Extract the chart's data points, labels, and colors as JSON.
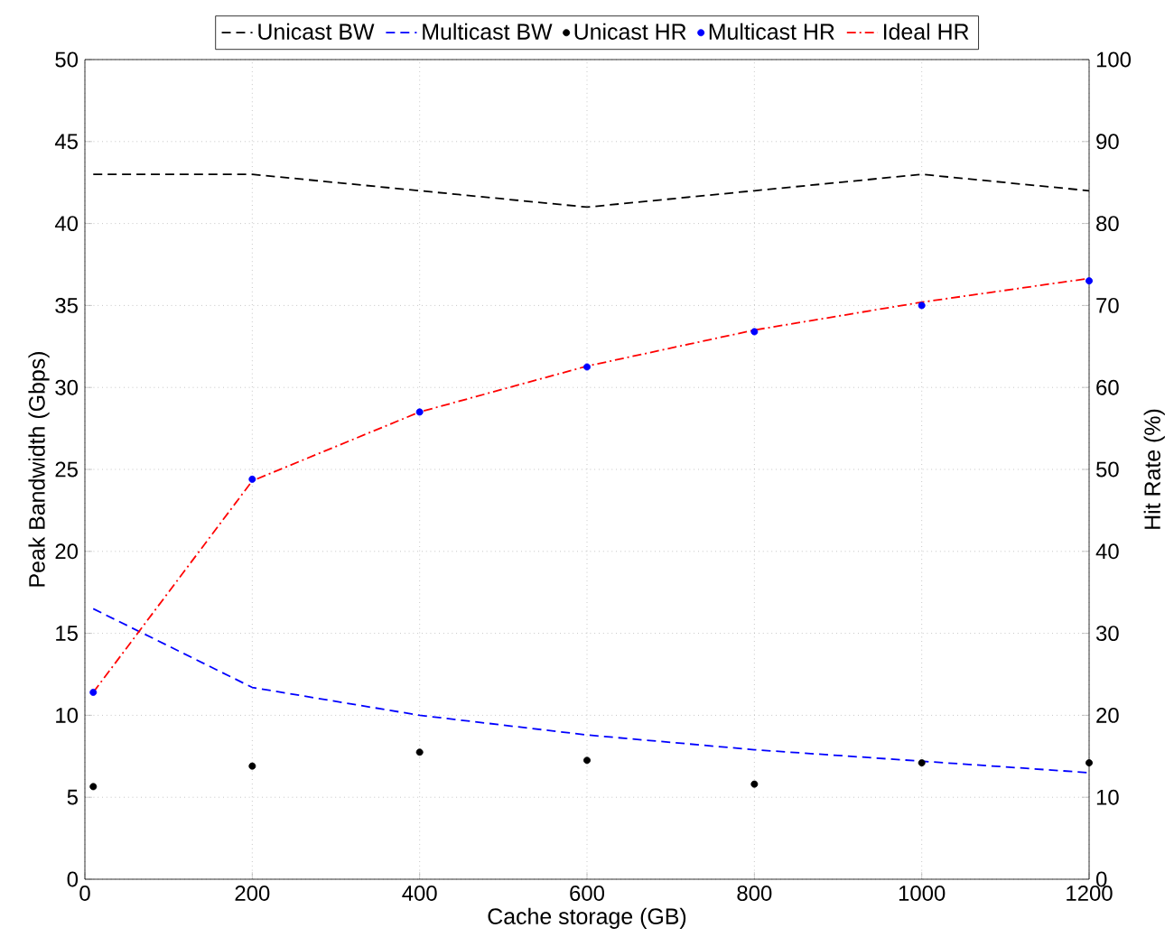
{
  "chart_data": {
    "type": "line",
    "xlabel": "Cache storage (GB)",
    "ylabel": "Peak Bandwidth (Gbps)",
    "y2label": "Hit Rate (%)",
    "xlim": [
      0,
      1200
    ],
    "xticks": [
      0,
      200,
      400,
      600,
      800,
      1000,
      1200
    ],
    "ylim": [
      0,
      50
    ],
    "yticks": [
      0,
      5,
      10,
      15,
      20,
      25,
      30,
      35,
      40,
      45,
      50
    ],
    "y2lim": [
      0,
      100
    ],
    "y2ticks": [
      0,
      10,
      20,
      30,
      40,
      50,
      60,
      70,
      80,
      90,
      100
    ],
    "grid": true,
    "legend": "top",
    "x": [
      10,
      200,
      400,
      600,
      800,
      1000,
      1200
    ],
    "series": [
      {
        "name": "Unicast BW",
        "color": "#000000",
        "line_style": "dashed",
        "values": [
          43,
          43,
          42,
          41,
          42,
          43,
          42
        ]
      },
      {
        "name": "Multicast BW",
        "color": "#0000ff",
        "line_style": "dashed",
        "values": [
          16.5,
          11.7,
          10,
          8.8,
          7.9,
          7.2,
          6.5
        ]
      },
      {
        "name": "Unicast HR",
        "type": "scatter",
        "axis": "y2",
        "color": "#000000",
        "marker": "circle",
        "values": [
          11.3,
          13.8,
          15.5,
          14.5,
          11.6,
          14.2,
          14.2
        ]
      },
      {
        "name": "Multicast HR",
        "type": "scatter",
        "axis": "y2",
        "color": "#0000ff",
        "marker": "circle",
        "values": [
          22.8,
          48.8,
          57,
          62.5,
          66.8,
          70,
          73
        ]
      },
      {
        "name": "Ideal HR",
        "axis": "y2",
        "color": "#ff0000",
        "line_style": "dashdot",
        "values": [
          22.8,
          48.6,
          57,
          62.6,
          67,
          70.4,
          73.3
        ]
      }
    ]
  }
}
